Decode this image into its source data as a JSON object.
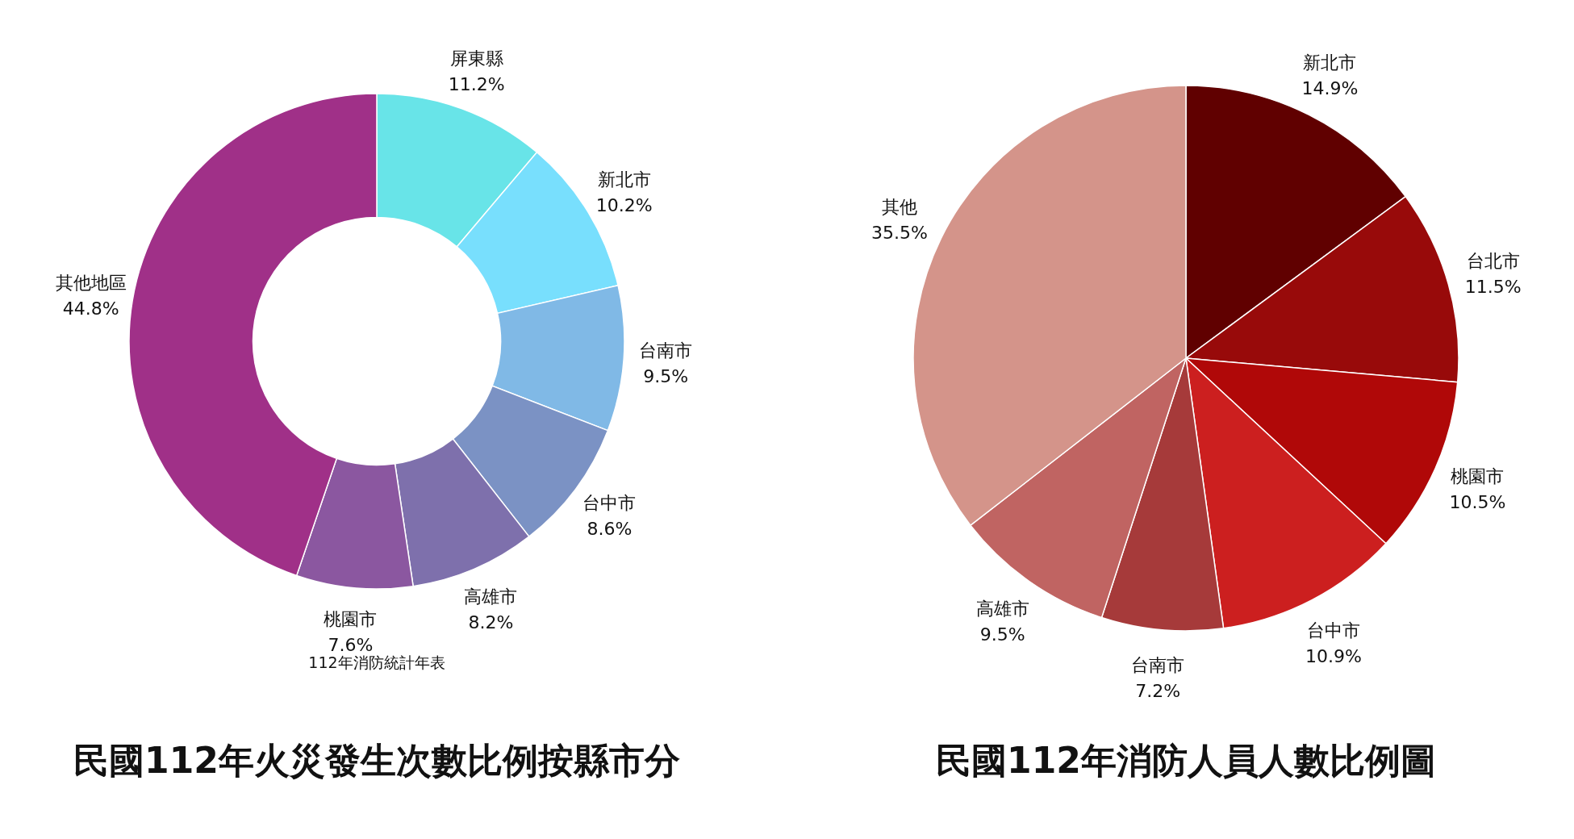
{
  "chart_data": [
    {
      "type": "donut",
      "title": "民國112年火災發生次數比例按縣市分",
      "categories": [
        "屏東縣",
        "新北市",
        "台南市",
        "台中市",
        "高雄市",
        "桃園市",
        "其他地區"
      ],
      "values": [
        11.2,
        10.2,
        9.5,
        8.6,
        8.2,
        7.6,
        44.8
      ],
      "colors": [
        "#68e4e8",
        "#78dffd",
        "#80b9e6",
        "#7b92c4",
        "#7e70ac",
        "#8b57a0",
        "#a03088"
      ],
      "value_labels": [
        "11.2%",
        "10.2%",
        "9.5%",
        "8.6%",
        "8.2%",
        "7.6%",
        "44.8%"
      ],
      "annotations": [
        "112年消防統計年表"
      ]
    },
    {
      "type": "pie",
      "title": "民國112年消防人員人數比例圖",
      "categories": [
        "新北市",
        "台北市",
        "桃園市",
        "台中市",
        "台南市",
        "高雄市",
        "其他"
      ],
      "values": [
        14.9,
        11.5,
        10.5,
        10.9,
        7.2,
        9.5,
        35.5
      ],
      "colors": [
        "#600000",
        "#980a0a",
        "#b00808",
        "#cc1f1f",
        "#a63a3a",
        "#c06462",
        "#d4948a"
      ],
      "value_labels": [
        "14.9%",
        "11.5%",
        "10.5%",
        "10.9%",
        "7.2%",
        "9.5%",
        "35.5%"
      ]
    }
  ]
}
